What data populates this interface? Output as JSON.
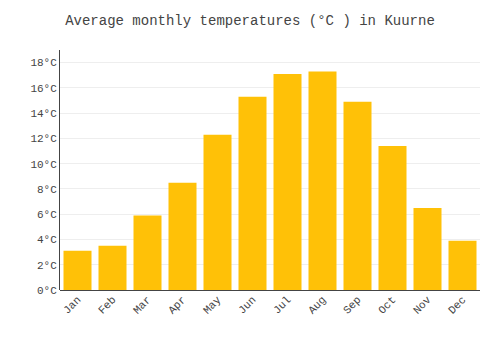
{
  "chart_data": {
    "type": "bar",
    "title": "Average monthly temperatures (°C ) in Kuurne",
    "categories": [
      "Jan",
      "Feb",
      "Mar",
      "Apr",
      "May",
      "Jun",
      "Jul",
      "Aug",
      "Sep",
      "Oct",
      "Nov",
      "Dec"
    ],
    "values": [
      3.1,
      3.5,
      5.9,
      8.5,
      12.3,
      15.3,
      17.1,
      17.3,
      14.9,
      11.4,
      6.5,
      3.9
    ],
    "color": "#FFC107",
    "ylim": [
      0,
      19
    ],
    "yticks": [
      {
        "value": 0,
        "label": "0°C"
      },
      {
        "value": 2,
        "label": "2°C"
      },
      {
        "value": 4,
        "label": "4°C"
      },
      {
        "value": 6,
        "label": "6°C"
      },
      {
        "value": 8,
        "label": "8°C"
      },
      {
        "value": 10,
        "label": "10°C"
      },
      {
        "value": 12,
        "label": "12°C"
      },
      {
        "value": 14,
        "label": "14°C"
      },
      {
        "value": 16,
        "label": "16°C"
      },
      {
        "value": 18,
        "label": "18°C"
      }
    ],
    "grid": true
  }
}
